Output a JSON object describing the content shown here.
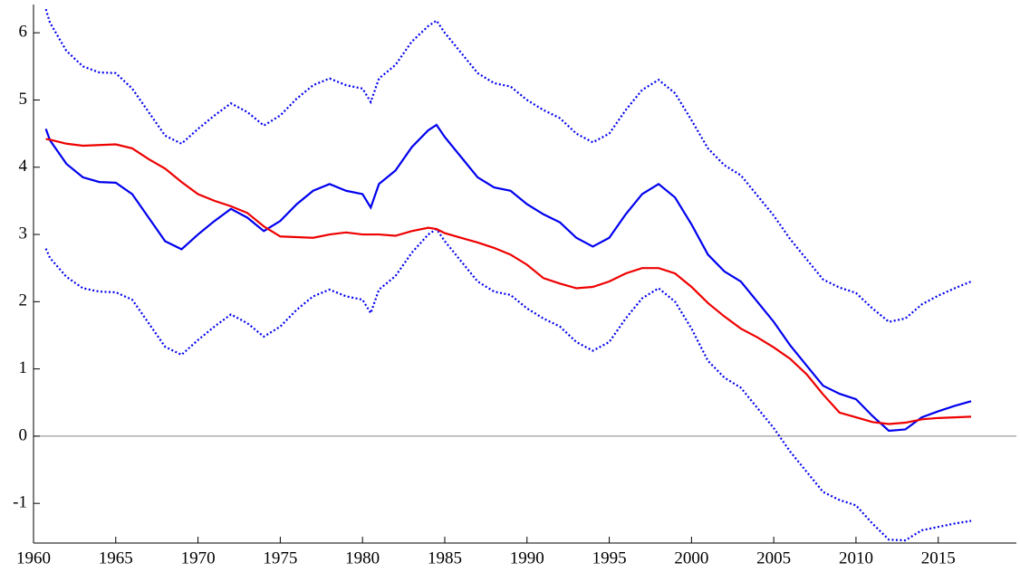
{
  "chart_data": {
    "type": "line",
    "x": [
      1960.75,
      1961,
      1962,
      1963,
      1964,
      1965,
      1966,
      1967,
      1968,
      1969,
      1970,
      1971,
      1972,
      1973,
      1974,
      1975,
      1976,
      1977,
      1978,
      1979,
      1980,
      1980.5,
      1981,
      1982,
      1983,
      1984,
      1984.5,
      1985,
      1986,
      1987,
      1988,
      1989,
      1990,
      1991,
      1992,
      1993,
      1994,
      1995,
      1996,
      1997,
      1998,
      1999,
      2000,
      2001,
      2002,
      2003,
      2004,
      2005,
      2006,
      2007,
      2008,
      2009,
      2010,
      2011,
      2012,
      2013,
      2014,
      2015,
      2016,
      2017
    ],
    "series": [
      {
        "color": "#0000ee",
        "dash": "dotted",
        "values": [
          6.35,
          6.15,
          5.73,
          5.5,
          5.41,
          5.4,
          5.17,
          4.82,
          4.47,
          4.35,
          4.57,
          4.77,
          4.95,
          4.82,
          4.62,
          4.77,
          5.02,
          5.22,
          5.32,
          5.22,
          5.17,
          4.97,
          5.32,
          5.52,
          5.87,
          6.1,
          6.18,
          6.0,
          5.7,
          5.4,
          5.25,
          5.2,
          5.0,
          4.85,
          4.73,
          4.5,
          4.37,
          4.5,
          4.85,
          5.15,
          5.3,
          5.1,
          4.7,
          4.28,
          4.03,
          3.88,
          3.58,
          3.28,
          2.93,
          2.63,
          2.33,
          2.21,
          2.13,
          1.9,
          1.7,
          1.75,
          1.96,
          2.09,
          2.2,
          2.3
        ]
      },
      {
        "color": "#0000ee",
        "dash": "dotted",
        "values": [
          2.79,
          2.65,
          2.37,
          2.2,
          2.15,
          2.14,
          2.03,
          1.68,
          1.33,
          1.21,
          1.43,
          1.63,
          1.81,
          1.68,
          1.48,
          1.63,
          1.88,
          2.08,
          2.18,
          2.08,
          2.03,
          1.83,
          2.18,
          2.38,
          2.73,
          3.0,
          3.08,
          2.9,
          2.6,
          2.3,
          2.15,
          2.1,
          1.9,
          1.75,
          1.63,
          1.4,
          1.27,
          1.4,
          1.75,
          2.05,
          2.2,
          2.0,
          1.6,
          1.12,
          0.87,
          0.72,
          0.42,
          0.12,
          -0.23,
          -0.53,
          -0.83,
          -0.95,
          -1.03,
          -1.3,
          -1.54,
          -1.55,
          -1.4,
          -1.35,
          -1.3,
          -1.26
        ]
      },
      {
        "color": "#0000ee",
        "dash": "solid",
        "values": [
          4.57,
          4.4,
          4.05,
          3.85,
          3.78,
          3.77,
          3.6,
          3.25,
          2.9,
          2.78,
          3.0,
          3.2,
          3.38,
          3.25,
          3.05,
          3.2,
          3.45,
          3.65,
          3.75,
          3.65,
          3.6,
          3.4,
          3.75,
          3.95,
          4.3,
          4.55,
          4.63,
          4.45,
          4.15,
          3.85,
          3.7,
          3.65,
          3.45,
          3.3,
          3.18,
          2.95,
          2.82,
          2.95,
          3.3,
          3.6,
          3.75,
          3.55,
          3.15,
          2.7,
          2.45,
          2.3,
          2.0,
          1.7,
          1.35,
          1.05,
          0.75,
          0.63,
          0.55,
          0.3,
          0.08,
          0.1,
          0.28,
          0.37,
          0.45,
          0.52
        ]
      },
      {
        "color": "#ee0000",
        "dash": "solid",
        "values": [
          4.42,
          4.41,
          4.35,
          4.32,
          4.33,
          4.34,
          4.28,
          4.12,
          3.98,
          3.78,
          3.6,
          3.5,
          3.42,
          3.32,
          3.12,
          2.97,
          2.96,
          2.95,
          3.0,
          3.03,
          3.0,
          3.0,
          3.0,
          2.98,
          3.05,
          3.1,
          3.08,
          3.02,
          2.95,
          2.88,
          2.8,
          2.7,
          2.55,
          2.35,
          2.27,
          2.2,
          2.22,
          2.3,
          2.42,
          2.5,
          2.5,
          2.42,
          2.22,
          1.98,
          1.78,
          1.6,
          1.47,
          1.32,
          1.15,
          0.92,
          0.62,
          0.35,
          0.28,
          0.21,
          0.18,
          0.2,
          0.25,
          0.27,
          0.28,
          0.29
        ]
      }
    ],
    "xlim": [
      1960,
      2019.75
    ],
    "xticks": [
      1960,
      1965,
      1970,
      1975,
      1980,
      1985,
      1990,
      1995,
      2000,
      2005,
      2010,
      2015
    ],
    "ylim": [
      -1.59,
      6.42
    ],
    "yticks": [
      -1,
      0,
      1,
      2,
      3,
      4,
      5,
      6
    ],
    "zero_line": true
  }
}
